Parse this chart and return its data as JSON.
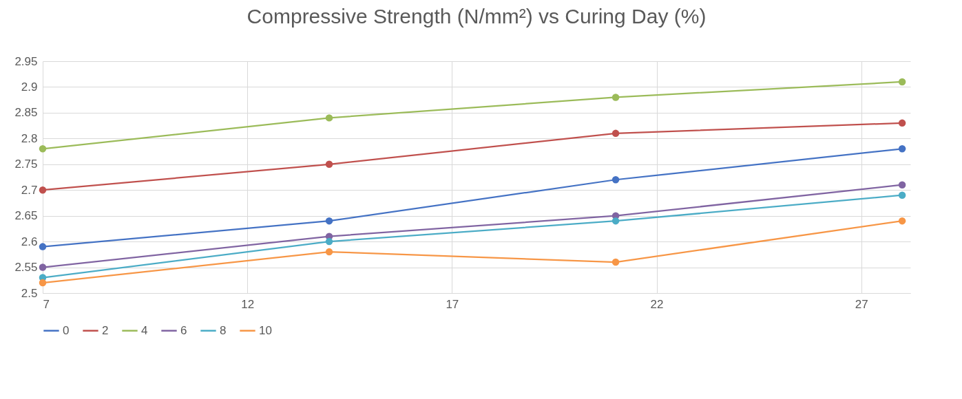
{
  "chart_data": {
    "type": "line",
    "title": "Compressive Strength (N/mm²) vs Curing Day (%)",
    "x": [
      7,
      14,
      21,
      28
    ],
    "series": [
      {
        "name": "0",
        "color": "#4472c4",
        "values": [
          2.59,
          2.64,
          2.72,
          2.78
        ]
      },
      {
        "name": "2",
        "color": "#c0504d",
        "values": [
          2.7,
          2.75,
          2.81,
          2.83
        ]
      },
      {
        "name": "4",
        "color": "#9bbb59",
        "values": [
          2.78,
          2.84,
          2.88,
          2.91
        ]
      },
      {
        "name": "6",
        "color": "#8064a2",
        "values": [
          2.55,
          2.61,
          2.65,
          2.71
        ]
      },
      {
        "name": "8",
        "color": "#4bacc6",
        "values": [
          2.53,
          2.6,
          2.64,
          2.69
        ]
      },
      {
        "name": "10",
        "color": "#f79646",
        "values": [
          2.52,
          2.58,
          2.56,
          2.64
        ]
      }
    ],
    "xlim": [
      7,
      28.2
    ],
    "xticks": [
      7,
      12,
      17,
      22,
      27
    ],
    "ylim": [
      2.5,
      2.95
    ],
    "yticks": [
      2.5,
      2.55,
      2.6,
      2.65,
      2.7,
      2.75,
      2.8,
      2.85,
      2.9,
      2.95
    ],
    "grid": true,
    "legend": "bottom",
    "marker": "circle",
    "line_style": "solid"
  }
}
